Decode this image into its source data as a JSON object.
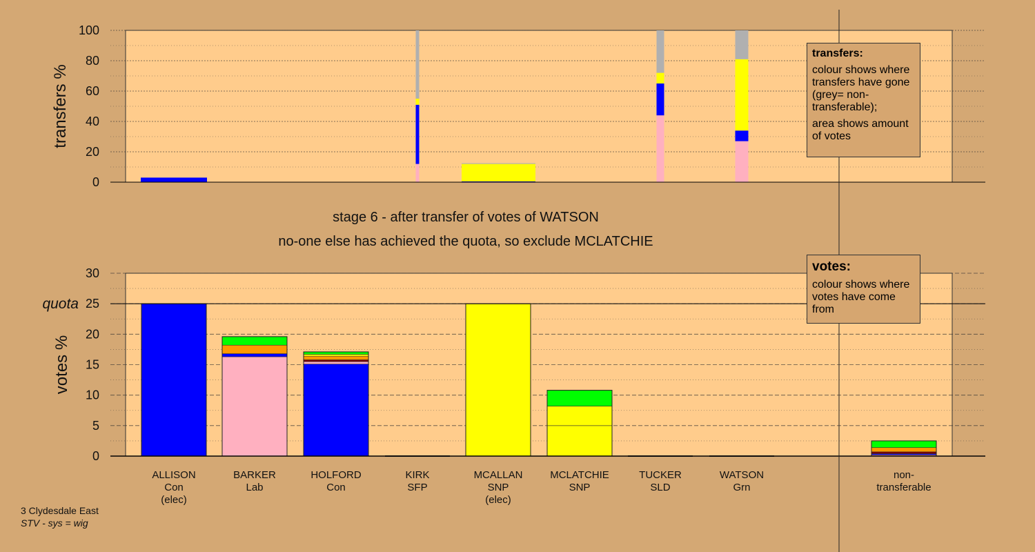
{
  "chart_data": [
    {
      "type": "bar",
      "stacked": true,
      "ylabel": "transfers %",
      "ylim": [
        0,
        100
      ],
      "yticks": [
        0,
        20,
        40,
        60,
        80,
        100
      ],
      "grid": true,
      "note": "bar width shows amount of votes transferred",
      "bars": [
        {
          "category": "ALLISON",
          "segments": [
            {
              "party": "Con",
              "from": 0,
              "to": 3
            }
          ]
        },
        {
          "category": "BARKER",
          "segments": []
        },
        {
          "category": "HOLFORD",
          "segments": []
        },
        {
          "category": "KIRK",
          "segments": [
            {
              "party": "Lab",
              "from": 0,
              "to": 12
            },
            {
              "party": "Con",
              "from": 12,
              "to": 51
            },
            {
              "party": "SNP",
              "from": 51,
              "to": 55
            },
            {
              "party": "non-transferable",
              "from": 55,
              "to": 100
            }
          ]
        },
        {
          "category": "MCALLAN",
          "segments": [
            {
              "party": "Con",
              "from": 0,
              "to": 0.5
            },
            {
              "party": "SNP",
              "from": 0.5,
              "to": 12
            },
            {
              "party": "non-transferable",
              "from": 12,
              "to": 12.5
            }
          ]
        },
        {
          "category": "MCLATCHIE",
          "segments": []
        },
        {
          "category": "TUCKER",
          "segments": [
            {
              "party": "Lab",
              "from": 0,
              "to": 44
            },
            {
              "party": "Con",
              "from": 44,
              "to": 65
            },
            {
              "party": "SNP",
              "from": 65,
              "to": 72
            },
            {
              "party": "non-transferable",
              "from": 72,
              "to": 100
            }
          ]
        },
        {
          "category": "WATSON",
          "segments": [
            {
              "party": "Lab",
              "from": 0,
              "to": 27
            },
            {
              "party": "Con",
              "from": 27,
              "to": 34
            },
            {
              "party": "SNP",
              "from": 34,
              "to": 81
            },
            {
              "party": "non-transferable",
              "from": 81,
              "to": 100
            }
          ]
        },
        {
          "category": "non-transferable",
          "segments": []
        }
      ]
    },
    {
      "type": "bar",
      "stacked": true,
      "ylabel": "votes %",
      "ylim": [
        0,
        30
      ],
      "yticks": [
        0,
        5,
        10,
        15,
        20,
        25,
        30
      ],
      "quota": 25,
      "quota_label": "quota",
      "grid": true,
      "bars": [
        {
          "category": "ALLISON",
          "party": "Con",
          "status": "(elec)",
          "segments": [
            {
              "from_party": "Con",
              "value": 25
            }
          ]
        },
        {
          "category": "BARKER",
          "party": "Lab",
          "status": "",
          "segments": [
            {
              "from_party": "Lab",
              "value": 16.3
            },
            {
              "from_party": "Con",
              "value": 0.5
            },
            {
              "from_party": "SLD",
              "value": 1.4
            },
            {
              "from_party": "Grn",
              "value": 1.4
            }
          ]
        },
        {
          "category": "HOLFORD",
          "party": "Con",
          "status": "",
          "segments": [
            {
              "from_party": "Con",
              "value": 15.1
            },
            {
              "from_party": "Lab",
              "value": 0.4
            },
            {
              "from_party": "SFP",
              "value": 0.3
            },
            {
              "from_party": "SLD",
              "value": 0.6
            },
            {
              "from_party": "SNP",
              "value": 0.3
            },
            {
              "from_party": "Grn",
              "value": 0.4
            }
          ]
        },
        {
          "category": "KIRK",
          "party": "SFP",
          "status": "",
          "segments": []
        },
        {
          "category": "MCALLAN",
          "party": "SNP",
          "status": "(elec)",
          "segments": [
            {
              "from_party": "SNP",
              "value": 25
            }
          ]
        },
        {
          "category": "MCLATCHIE",
          "party": "SNP",
          "status": "",
          "segments": [
            {
              "from_party": "SNP",
              "value": 5
            },
            {
              "from_party": "SNP",
              "value": 3.2
            },
            {
              "from_party": "Grn",
              "value": 2.6
            }
          ]
        },
        {
          "category": "TUCKER",
          "party": "SLD",
          "status": "",
          "segments": []
        },
        {
          "category": "WATSON",
          "party": "Grn",
          "status": "",
          "segments": []
        },
        {
          "category": "non-transferable",
          "party": "",
          "status": "",
          "segments": [
            {
              "from_party": "Lab",
              "value": 0.2
            },
            {
              "from_party": "Con",
              "value": 0.2
            },
            {
              "from_party": "SFP",
              "value": 0.3
            },
            {
              "from_party": "SLD",
              "value": 0.7
            },
            {
              "from_party": "Grn",
              "value": 1.1
            }
          ]
        }
      ]
    }
  ],
  "x_labels": [
    {
      "lines": [
        "ALLISON",
        "Con",
        "(elec)"
      ]
    },
    {
      "lines": [
        "BARKER",
        "Lab"
      ]
    },
    {
      "lines": [
        "HOLFORD",
        "Con"
      ]
    },
    {
      "lines": [
        "KIRK",
        "SFP"
      ]
    },
    {
      "lines": [
        "MCALLAN",
        "SNP",
        "(elec)"
      ]
    },
    {
      "lines": [
        "MCLATCHIE",
        "SNP"
      ]
    },
    {
      "lines": [
        "TUCKER",
        "SLD"
      ]
    },
    {
      "lines": [
        "WATSON",
        "Grn"
      ]
    },
    {
      "lines": [
        "non-",
        "transferable"
      ]
    }
  ],
  "party_colors": {
    "Con": "#0000ff",
    "Lab": "#ffb0c0",
    "SNP": "#ffff00",
    "SLD": "#ff9900",
    "Grn": "#00ff00",
    "SFP": "#800000",
    "non-transferable": "#b0b0b0"
  },
  "colors": {
    "background": "#d4a874",
    "plot_bg": "#ffcc8c",
    "axis": "#000000"
  },
  "stage": {
    "line1": "stage 6 - after transfer of votes of WATSON",
    "line2": "no-one else has achieved the quota, so exclude MCLATCHIE"
  },
  "legends": {
    "transfers": {
      "title": "transfers:",
      "para1": "colour shows where transfers have gone (grey= non-transferable);",
      "para2": "area shows amount of votes"
    },
    "votes": {
      "title": "votes:",
      "para1": "colour shows where votes have come from"
    }
  },
  "footer": {
    "line1": "3 Clydesdale East",
    "line2": "STV - sys = wig"
  }
}
